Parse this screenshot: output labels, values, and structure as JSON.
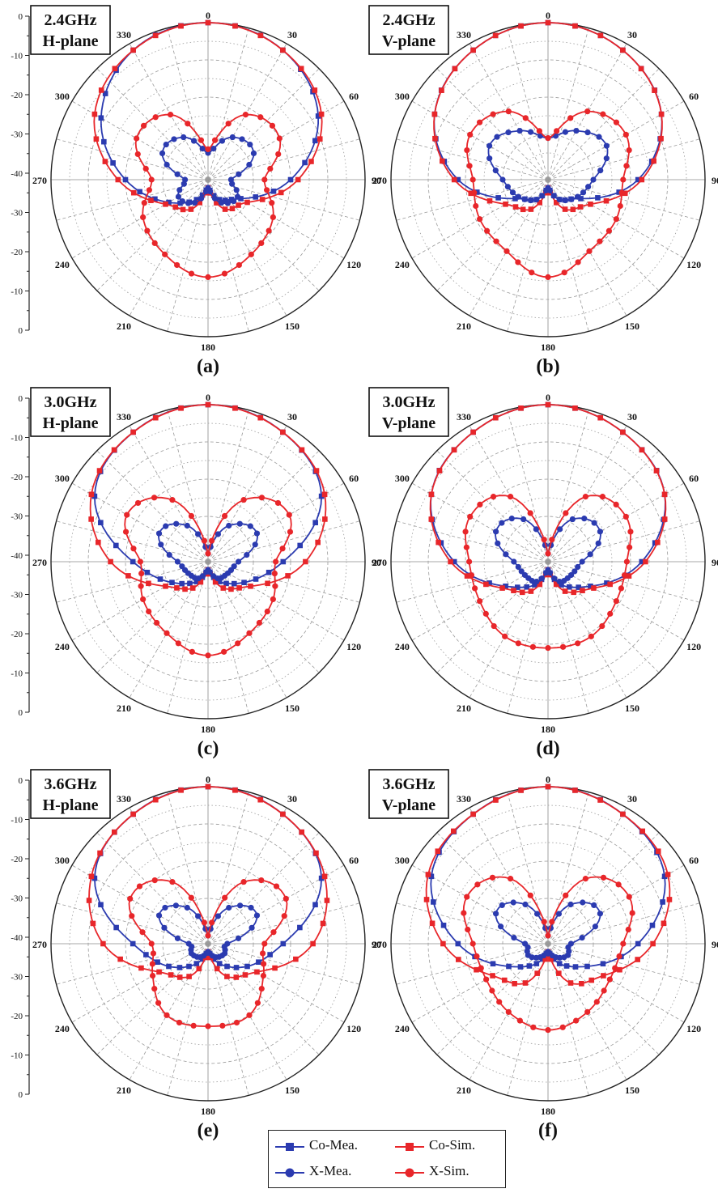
{
  "figure": {
    "panels": [
      {
        "label": "(a)",
        "freq": "2.4GHz",
        "plane": "H-plane"
      },
      {
        "label": "(b)",
        "freq": "2.4GHz",
        "plane": "V-plane"
      },
      {
        "label": "(c)",
        "freq": "3.0GHz",
        "plane": "H-plane"
      },
      {
        "label": "(d)",
        "freq": "3.0GHz",
        "plane": "V-plane"
      },
      {
        "label": "(e)",
        "freq": "3.6GHz",
        "plane": "H-plane"
      },
      {
        "label": "(f)",
        "freq": "3.6GHz",
        "plane": "V-plane"
      }
    ],
    "legend": [
      {
        "key": "co_mea",
        "label": "Co-Mea.",
        "color": "#2b3bb0",
        "marker": "square"
      },
      {
        "key": "co_sim",
        "label": "Co-Sim.",
        "color": "#e8262a",
        "marker": "square"
      },
      {
        "key": "x_mea",
        "label": "X-Mea.",
        "color": "#2b3bb0",
        "marker": "circle"
      },
      {
        "key": "x_sim",
        "label": "X-Sim.",
        "color": "#e8262a",
        "marker": "circle"
      }
    ]
  },
  "chart_data": [
    {
      "type": "polar",
      "title": "2.4GHz H-plane",
      "caption": "(a)",
      "rlim": [
        -40,
        0
      ],
      "r_ticks": [
        0,
        -10,
        -20,
        -30,
        -40,
        -30,
        -20,
        -10,
        0
      ],
      "angle_ticks": [
        "0",
        "30",
        "60",
        "90",
        "120",
        "150",
        "180",
        "210",
        "240",
        "270",
        "300",
        "330"
      ],
      "series": [
        {
          "name": "Co-Mea.",
          "theta": [
            0,
            30,
            60,
            90,
            120,
            150,
            180,
            210,
            240,
            270,
            300,
            330
          ],
          "r": [
            0,
            -2,
            -8,
            -20,
            -32,
            -36,
            -40,
            -36,
            -30,
            -20,
            -9,
            -2
          ]
        },
        {
          "name": "Co-Sim.",
          "theta": [
            0,
            30,
            60,
            90,
            120,
            150,
            180,
            210,
            240,
            270,
            300,
            330
          ],
          "r": [
            0,
            -2,
            -7,
            -18,
            -30,
            -33,
            -40,
            -33,
            -29,
            -18,
            -7,
            -2
          ]
        },
        {
          "name": "X-Mea.",
          "theta": [
            0,
            30,
            60,
            90,
            120,
            150,
            180,
            210,
            240,
            270,
            300,
            330
          ],
          "r": [
            -35,
            -29,
            -28,
            -36,
            -33,
            -35,
            -40,
            -35,
            -33,
            -36,
            -28,
            -29
          ]
        },
        {
          "name": "X-Sim.",
          "theta": [
            0,
            30,
            60,
            90,
            120,
            150,
            180,
            210,
            240,
            270,
            300,
            330
          ],
          "r": [
            -34,
            -22,
            -20,
            -27,
            -22,
            -19,
            -16,
            -19,
            -22,
            -27,
            -20,
            -22
          ]
        }
      ]
    },
    {
      "type": "polar",
      "title": "2.4GHz V-plane",
      "caption": "(b)",
      "rlim": [
        -40,
        0
      ],
      "r_ticks": [
        0,
        -10,
        -20,
        -30,
        -40,
        -30,
        -20,
        -10,
        0
      ],
      "angle_ticks": [
        "0",
        "30",
        "60",
        "90",
        "120",
        "150",
        "180",
        "210",
        "240",
        "270",
        "300",
        "330"
      ],
      "series": [
        {
          "name": "Co-Mea.",
          "theta": [
            0,
            30,
            60,
            90,
            120,
            150,
            180,
            210,
            240,
            270,
            300,
            330
          ],
          "r": [
            0,
            -2,
            -7,
            -18,
            -32,
            -36,
            -40,
            -36,
            -32,
            -18,
            -7,
            -2
          ]
        },
        {
          "name": "Co-Sim.",
          "theta": [
            0,
            30,
            60,
            90,
            120,
            150,
            180,
            210,
            240,
            270,
            300,
            330
          ],
          "r": [
            0,
            -2,
            -7,
            -17,
            -29,
            -33,
            -40,
            -33,
            -29,
            -17,
            -7,
            -2
          ]
        },
        {
          "name": "X-Mea.",
          "theta": [
            0,
            30,
            60,
            90,
            120,
            150,
            180,
            210,
            240,
            270,
            300,
            330
          ],
          "r": [
            -31,
            -27,
            -24,
            -30,
            -33,
            -36,
            -40,
            -36,
            -33,
            -30,
            -24,
            -27
          ]
        },
        {
          "name": "X-Sim.",
          "theta": [
            0,
            30,
            60,
            90,
            120,
            150,
            180,
            210,
            240,
            270,
            300,
            330
          ],
          "r": [
            -31,
            -21,
            -18,
            -22,
            -21,
            -20,
            -16,
            -20,
            -21,
            -22,
            -18,
            -21
          ]
        }
      ]
    },
    {
      "type": "polar",
      "title": "3.0GHz H-plane",
      "caption": "(c)",
      "rlim": [
        -40,
        0
      ],
      "r_ticks": [
        0,
        -10,
        -20,
        -30,
        -40,
        -30,
        -20,
        -10,
        0
      ],
      "angle_ticks": [
        "0",
        "30",
        "60",
        "90",
        "120",
        "150",
        "180",
        "210",
        "240",
        "270",
        "300",
        "330"
      ],
      "series": [
        {
          "name": "Co-Mea.",
          "theta": [
            0,
            30,
            60,
            90,
            120,
            150,
            180,
            210,
            240,
            270,
            300,
            330
          ],
          "r": [
            0,
            -2,
            -7,
            -22,
            -31,
            -36,
            -40,
            -36,
            -31,
            -22,
            -7,
            -2
          ]
        },
        {
          "name": "Co-Sim.",
          "theta": [
            0,
            30,
            60,
            90,
            120,
            150,
            180,
            210,
            240,
            270,
            300,
            330
          ],
          "r": [
            0,
            -2,
            -6,
            -16,
            -29,
            -34,
            -40,
            -34,
            -29,
            -16,
            -6,
            -2
          ]
        },
        {
          "name": "X-Mea.",
          "theta": [
            0,
            30,
            60,
            90,
            120,
            150,
            180,
            210,
            240,
            270,
            300,
            330
          ],
          "r": [
            -40,
            -31,
            -27,
            -34,
            -36,
            -37,
            -40,
            -37,
            -36,
            -34,
            -27,
            -31
          ]
        },
        {
          "name": "X-Sim.",
          "theta": [
            0,
            30,
            60,
            90,
            120,
            150,
            180,
            210,
            240,
            270,
            300,
            330
          ],
          "r": [
            -40,
            -23,
            -17,
            -24,
            -22,
            -20,
            -17,
            -20,
            -22,
            -24,
            -17,
            -23
          ]
        }
      ]
    },
    {
      "type": "polar",
      "title": "3.0GHz V-plane",
      "caption": "(d)",
      "rlim": [
        -40,
        0
      ],
      "r_ticks": [
        0,
        -10,
        -20,
        -30,
        -40,
        -30,
        -20,
        -10,
        0
      ],
      "angle_ticks": [
        "0",
        "30",
        "60",
        "90",
        "120",
        "150",
        "180",
        "210",
        "240",
        "270",
        "300",
        "330"
      ],
      "series": [
        {
          "name": "Co-Mea.",
          "theta": [
            0,
            30,
            60,
            90,
            120,
            150,
            180,
            210,
            240,
            270,
            300,
            330
          ],
          "r": [
            0,
            -2,
            -6,
            -17,
            -29,
            -35,
            -40,
            -35,
            -29,
            -17,
            -6,
            -2
          ]
        },
        {
          "name": "Co-Sim.",
          "theta": [
            0,
            30,
            60,
            90,
            120,
            150,
            180,
            210,
            240,
            270,
            300,
            330
          ],
          "r": [
            0,
            -2,
            -6,
            -16,
            -28,
            -33,
            -40,
            -33,
            -28,
            -16,
            -6,
            -2
          ]
        },
        {
          "name": "X-Mea.",
          "theta": [
            0,
            30,
            60,
            90,
            120,
            150,
            180,
            210,
            240,
            270,
            300,
            330
          ],
          "r": [
            -40,
            -29,
            -26,
            -33,
            -35,
            -36,
            -40,
            -36,
            -35,
            -33,
            -26,
            -29
          ]
        },
        {
          "name": "X-Sim.",
          "theta": [
            0,
            30,
            60,
            90,
            120,
            150,
            180,
            210,
            240,
            270,
            300,
            330
          ],
          "r": [
            -40,
            -22,
            -18,
            -21,
            -21,
            -19,
            -19,
            -19,
            -21,
            -21,
            -18,
            -22
          ]
        }
      ]
    },
    {
      "type": "polar",
      "title": "3.6GHz H-plane",
      "caption": "(e)",
      "rlim": [
        -40,
        0
      ],
      "r_ticks": [
        0,
        -10,
        -20,
        -30,
        -40,
        -30,
        -20,
        -10,
        0
      ],
      "angle_ticks": [
        "0",
        "30",
        "60",
        "90",
        "120",
        "150",
        "180",
        "210",
        "240",
        "270",
        "300",
        "330"
      ],
      "series": [
        {
          "name": "Co-Mea.",
          "theta": [
            0,
            30,
            60,
            90,
            120,
            150,
            180,
            210,
            240,
            270,
            300,
            330
          ],
          "r": [
            0,
            -2,
            -7,
            -22,
            -30,
            -36,
            -40,
            -36,
            -30,
            -22,
            -7,
            -2
          ]
        },
        {
          "name": "Co-Sim.",
          "theta": [
            0,
            30,
            60,
            90,
            120,
            150,
            180,
            210,
            240,
            270,
            300,
            330
          ],
          "r": [
            0,
            -2,
            -6,
            -14,
            -27,
            -32,
            -40,
            -32,
            -27,
            -14,
            -6,
            -2
          ]
        },
        {
          "name": "X-Mea.",
          "theta": [
            0,
            30,
            60,
            90,
            120,
            150,
            180,
            210,
            240,
            270,
            300,
            330
          ],
          "r": [
            -40,
            -31,
            -27,
            -37,
            -37,
            -38,
            -40,
            -38,
            -37,
            -37,
            -27,
            -31
          ]
        },
        {
          "name": "X-Sim.",
          "theta": [
            0,
            30,
            60,
            90,
            120,
            150,
            180,
            210,
            240,
            270,
            300,
            330
          ],
          "r": [
            -40,
            -23,
            -18,
            -27,
            -25,
            -20,
            -20,
            -20,
            -25,
            -27,
            -18,
            -23
          ]
        }
      ]
    },
    {
      "type": "polar",
      "title": "3.6GHz V-plane",
      "caption": "(f)",
      "rlim": [
        -40,
        0
      ],
      "r_ticks": [
        0,
        -10,
        -20,
        -30,
        -40,
        -30,
        -20,
        -10,
        0
      ],
      "angle_ticks": [
        "0",
        "30",
        "60",
        "90",
        "120",
        "150",
        "180",
        "210",
        "240",
        "270",
        "300",
        "330"
      ],
      "series": [
        {
          "name": "Co-Mea.",
          "theta": [
            0,
            30,
            60,
            90,
            120,
            150,
            180,
            210,
            240,
            270,
            300,
            330
          ],
          "r": [
            0,
            -2,
            -6,
            -18,
            -30,
            -36,
            -40,
            -36,
            -30,
            -18,
            -6,
            -2
          ]
        },
        {
          "name": "Co-Sim.",
          "theta": [
            0,
            30,
            60,
            90,
            120,
            150,
            180,
            210,
            240,
            270,
            300,
            330
          ],
          "r": [
            0,
            -2,
            -5,
            -14,
            -25,
            -30,
            -40,
            -30,
            -25,
            -14,
            -5,
            -2
          ]
        },
        {
          "name": "X-Mea.",
          "theta": [
            0,
            30,
            60,
            90,
            120,
            150,
            180,
            210,
            240,
            270,
            300,
            330
          ],
          "r": [
            -40,
            -30,
            -26,
            -36,
            -36,
            -38,
            -40,
            -38,
            -36,
            -36,
            -26,
            -30
          ]
        },
        {
          "name": "X-Sim.",
          "theta": [
            0,
            30,
            60,
            90,
            120,
            150,
            180,
            210,
            240,
            270,
            300,
            330
          ],
          "r": [
            -40,
            -22,
            -17,
            -22,
            -23,
            -21,
            -19,
            -21,
            -23,
            -22,
            -17,
            -22
          ]
        }
      ]
    }
  ]
}
